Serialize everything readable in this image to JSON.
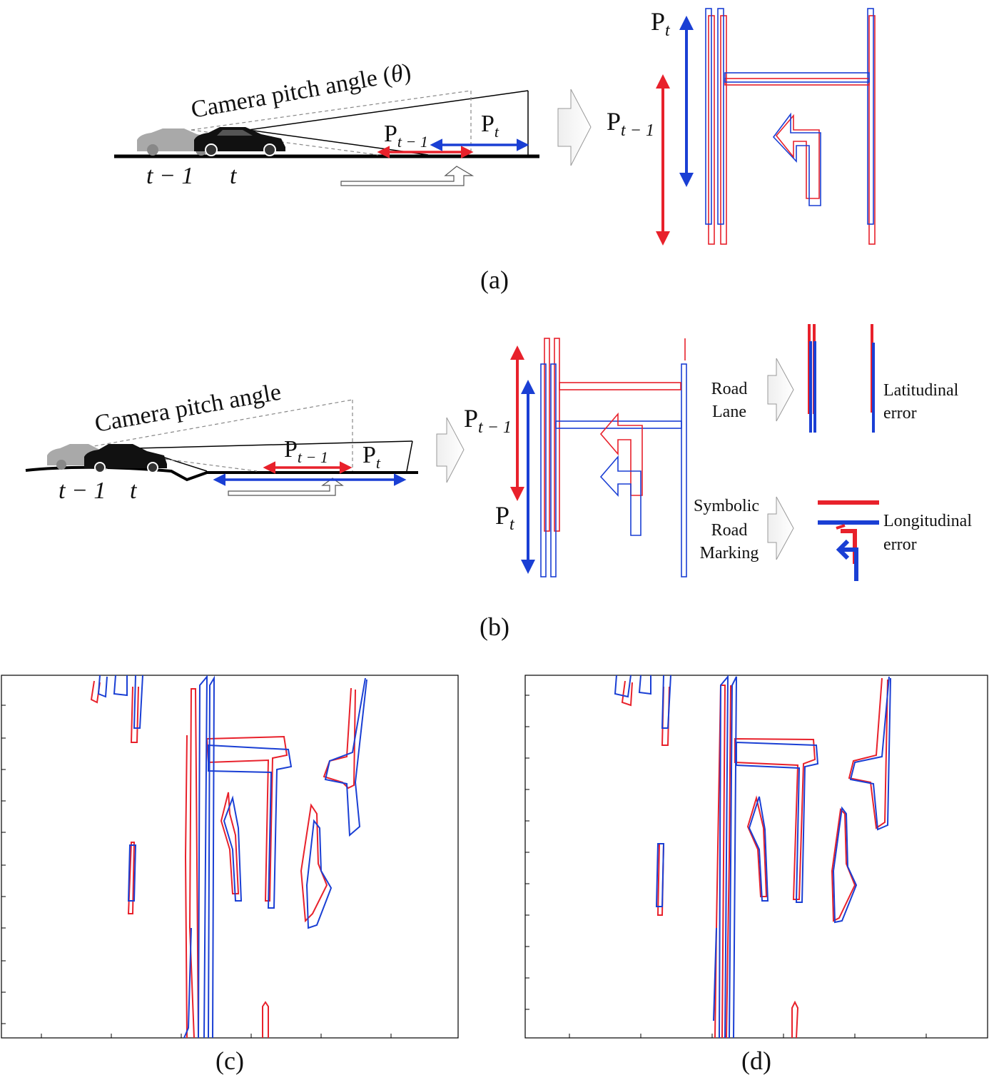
{
  "panel_a": {
    "caption": "(a)",
    "pitch_label": "Camera pitch angle (",
    "theta": "θ",
    "pitch_close": ")",
    "time_prev": "t − 1",
    "time_curr": "t",
    "p_prev": "P",
    "p_prev_sub": "t − 1",
    "p_curr": "P",
    "p_curr_sub": "t"
  },
  "panel_b": {
    "caption": "(b)",
    "pitch_label": "Camera pitch angle",
    "time_prev": "t − 1",
    "time_curr": "t",
    "p_prev": "P",
    "p_prev_sub": "t − 1",
    "p_curr": "P",
    "p_curr_sub": "t",
    "road_lane": [
      "Road",
      "Lane"
    ],
    "latitudinal": [
      "Latitudinal",
      "error"
    ],
    "symbolic": [
      "Symbolic",
      "Road",
      "Marking"
    ],
    "longitudinal": [
      "Longitudinal",
      "error"
    ]
  },
  "panel_c": {
    "caption": "(c)"
  },
  "panel_d": {
    "caption": "(d)"
  },
  "colors": {
    "previous": "#e8212b",
    "current": "#1a3fd4"
  }
}
